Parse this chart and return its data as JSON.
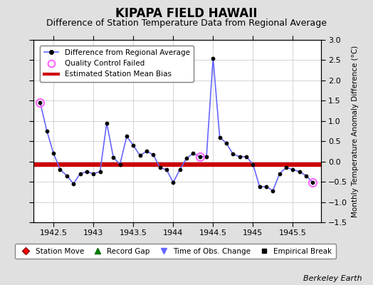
{
  "title": "KIPAPA FIELD HAWAII",
  "subtitle": "Difference of Station Temperature Data from Regional Average",
  "ylabel_right": "Monthly Temperature Anomaly Difference (°C)",
  "credit": "Berkeley Earth",
  "xlim": [
    1942.25,
    1945.85
  ],
  "ylim": [
    -1.5,
    3.0
  ],
  "yticks": [
    -1.5,
    -1.0,
    -0.5,
    0.0,
    0.5,
    1.0,
    1.5,
    2.0,
    2.5,
    3.0
  ],
  "xticks": [
    1942.5,
    1943.0,
    1943.5,
    1944.0,
    1944.5,
    1945.0,
    1945.5
  ],
  "xticklabels": [
    "1942.5",
    "1943",
    "1943.5",
    "1944",
    "1944.5",
    "1945",
    "1945.5"
  ],
  "mean_bias": -0.07,
  "line_color": "#6666ff",
  "dot_color": "#000000",
  "bias_color": "#cc0000",
  "qc_fail_color": "#ff66ff",
  "background_color": "#e0e0e0",
  "plot_bg_color": "#ffffff",
  "x_data": [
    1942.333,
    1942.417,
    1942.5,
    1942.583,
    1942.667,
    1942.75,
    1942.833,
    1942.917,
    1943.0,
    1943.083,
    1943.167,
    1943.25,
    1943.333,
    1943.417,
    1943.5,
    1943.583,
    1943.667,
    1943.75,
    1943.833,
    1943.917,
    1944.0,
    1944.083,
    1944.167,
    1944.25,
    1944.333,
    1944.417,
    1944.5,
    1944.583,
    1944.667,
    1944.75,
    1944.833,
    1944.917,
    1945.0,
    1945.083,
    1945.167,
    1945.25,
    1945.333,
    1945.417,
    1945.5,
    1945.583,
    1945.667,
    1945.75
  ],
  "y_data": [
    1.45,
    0.75,
    0.2,
    -0.2,
    -0.35,
    -0.55,
    -0.3,
    -0.25,
    -0.3,
    -0.25,
    0.95,
    0.1,
    -0.07,
    0.62,
    0.4,
    0.15,
    0.25,
    0.17,
    -0.15,
    -0.2,
    -0.52,
    -0.2,
    0.08,
    0.2,
    0.12,
    0.12,
    2.55,
    0.6,
    0.45,
    0.18,
    0.12,
    0.12,
    -0.07,
    -0.62,
    -0.62,
    -0.72,
    -0.3,
    -0.15,
    -0.2,
    -0.25,
    -0.35,
    -0.52
  ],
  "qc_fail_indices": [
    0,
    24,
    41
  ],
  "title_fontsize": 12,
  "subtitle_fontsize": 9
}
